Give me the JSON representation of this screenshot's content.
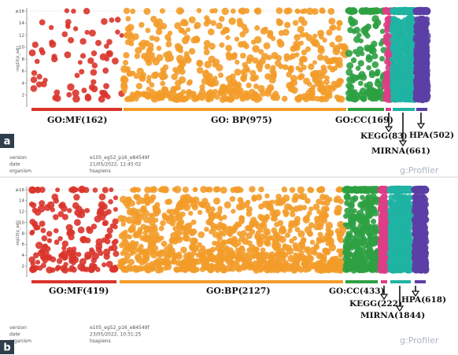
{
  "chart_data": [
    {
      "type": "scatter",
      "panel_label": "a",
      "ylabel": "-log10(p_adj)",
      "y_ticks": [
        "2",
        "4",
        "6",
        "8",
        "10",
        "12",
        "14",
        "≥16"
      ],
      "ylim": [
        0,
        16
      ],
      "categories": [
        {
          "key": "mf",
          "label": "GO:MF(162)",
          "count": 162,
          "color": "#d9342b"
        },
        {
          "key": "bp",
          "label": "GO: BP(975)",
          "count": 975,
          "color": "#f39c2a"
        },
        {
          "key": "cc",
          "label": "GO:CC(169)",
          "count": 169,
          "color": "#2ea043"
        },
        {
          "key": "kegg",
          "label": "KEGG(83)",
          "count": 83,
          "color": "#dd3e86"
        },
        {
          "key": "mirna",
          "label": "MIRNA(661)",
          "count": 661,
          "color": "#1fb3a3"
        },
        {
          "key": "hpa",
          "label": "HPA(502)",
          "count": 502,
          "color": "#5b3fa6"
        }
      ],
      "info": {
        "version_label": "version",
        "version": "e105_eg52_p16_e84549f",
        "date_label": "date",
        "date": "21/05/2022, 12:45:02",
        "organism_label": "organism",
        "organism": "hsapiens",
        "brand": "g:Profiler"
      }
    },
    {
      "type": "scatter",
      "panel_label": "b",
      "ylabel": "-log10(p_adj)",
      "y_ticks": [
        "2",
        "4",
        "6",
        "8",
        "10",
        "12",
        "14",
        "≥16"
      ],
      "ylim": [
        0,
        16
      ],
      "categories": [
        {
          "key": "mf",
          "label": "GO:MF(419)",
          "count": 419,
          "color": "#d9342b"
        },
        {
          "key": "bp",
          "label": "GO:BP(2127)",
          "count": 2127,
          "color": "#f39c2a"
        },
        {
          "key": "cc",
          "label": "GO:CC(433)",
          "count": 433,
          "color": "#2ea043"
        },
        {
          "key": "kegg",
          "label": "KEGG(222)",
          "count": 222,
          "color": "#dd3e86"
        },
        {
          "key": "mirna",
          "label": "MIRNA(1844)",
          "count": 1844,
          "color": "#1fb3a3"
        },
        {
          "key": "hpa",
          "label": "HPA(618)",
          "count": 618,
          "color": "#5b3fa6"
        }
      ],
      "info": {
        "version_label": "version",
        "version": "e105_eg52_p16_e84549f",
        "date_label": "date",
        "date": "23/05/2022, 10:31:25",
        "organism_label": "organism",
        "organism": "hsapiens",
        "brand": "g:Profiler"
      }
    }
  ]
}
